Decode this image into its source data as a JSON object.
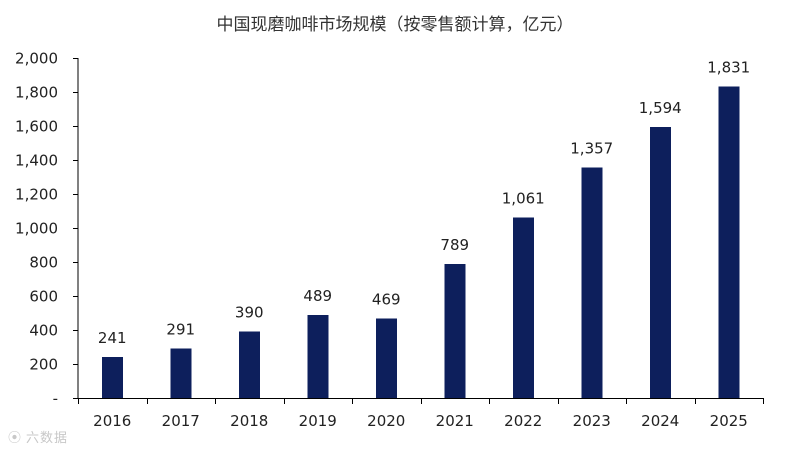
{
  "chart_data": {
    "type": "bar",
    "title": "中国现磨咖啡市场规模（按零售额计算，亿元）",
    "xlabel": "",
    "ylabel": "",
    "categories": [
      "2016",
      "2017",
      "2018",
      "2019",
      "2020",
      "2021",
      "2022",
      "2023",
      "2024",
      "2025"
    ],
    "values": [
      241,
      291,
      390,
      489,
      469,
      789,
      1061,
      1357,
      1594,
      1831
    ],
    "value_labels": [
      "241",
      "291",
      "390",
      "489",
      "469",
      "789",
      "1,061",
      "1,357",
      "1,594",
      "1,831"
    ],
    "ylim": [
      0,
      2000
    ],
    "y_ticks": [
      0,
      200,
      400,
      600,
      800,
      1000,
      1200,
      1400,
      1600,
      1800,
      2000
    ],
    "y_tick_labels": [
      "-",
      "200",
      "400",
      "600",
      "800",
      "1,000",
      "1,200",
      "1,400",
      "1,600",
      "1,800",
      "2,000"
    ],
    "bar_color": "#0d1f5c",
    "grid": false,
    "legend": "none"
  },
  "watermark": {
    "text": "六数据"
  }
}
